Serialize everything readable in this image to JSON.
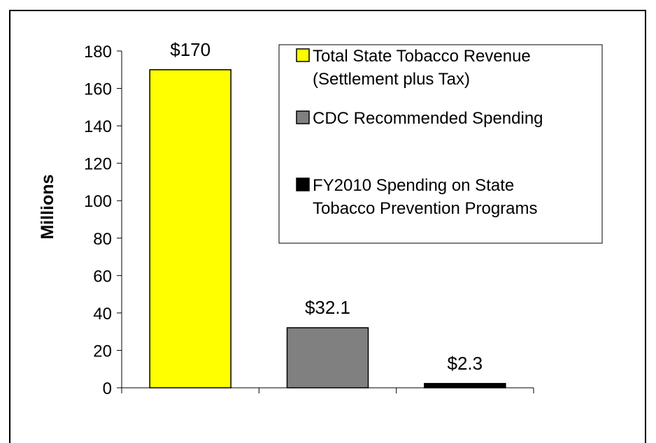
{
  "chart_data": {
    "type": "bar",
    "categories": [
      "Total State Tobacco Revenue (Settlement plus Tax)",
      "CDC Recommended Spending",
      "FY2010 Spending on State Tobacco Prevention Programs"
    ],
    "values": [
      170,
      32.1,
      2.3
    ],
    "data_labels": [
      "$170",
      "$32.1",
      "$2.3"
    ],
    "colors": [
      "#ffff00",
      "#808080",
      "#000000"
    ],
    "ylabel": "Millions",
    "ylim": [
      0,
      180
    ],
    "yticks": [
      0,
      20,
      40,
      60,
      80,
      100,
      120,
      140,
      160,
      180
    ],
    "grid": false,
    "legend": {
      "placement": "top-right",
      "entries": [
        {
          "lines": [
            "Total State Tobacco Revenue",
            "(Settlement plus Tax)"
          ],
          "color": "#ffff00"
        },
        {
          "lines": [
            "CDC Recommended Spending"
          ],
          "color": "#808080"
        },
        {
          "lines": [
            "FY2010 Spending on State",
            "Tobacco Prevention Programs"
          ],
          "color": "#000000"
        }
      ]
    }
  }
}
